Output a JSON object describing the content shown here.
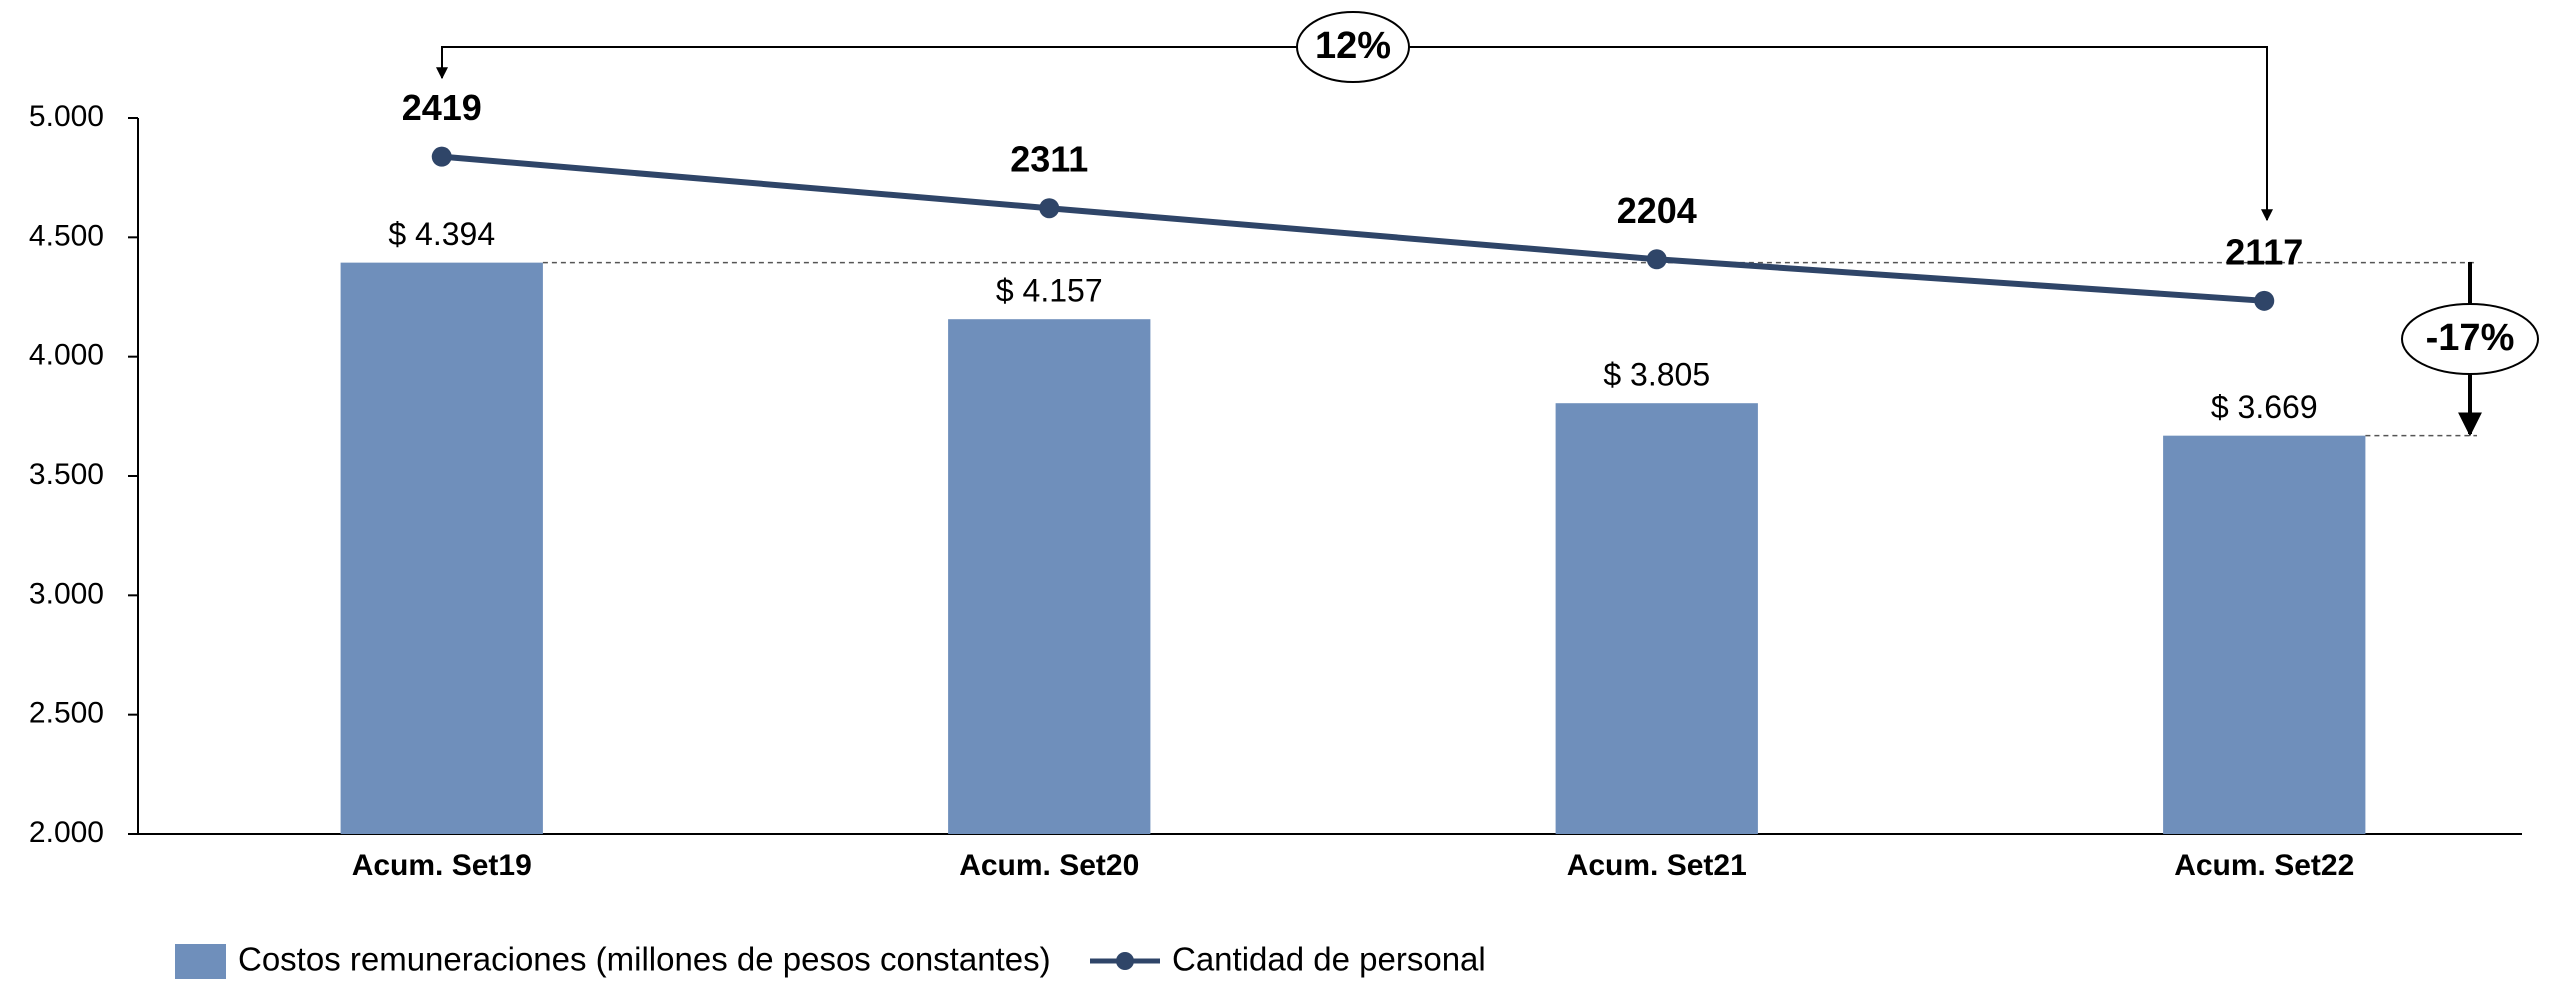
{
  "chart_data": {
    "type": "combo",
    "categories": [
      "Acum. Set19",
      "Acum. Set20",
      "Acum. Set21",
      "Acum. Set22"
    ],
    "series": [
      {
        "name": "Costos remuneraciones (millones de pesos constantes)",
        "type": "bar",
        "color": "#6f8fbb",
        "values": [
          4394,
          4157,
          3805,
          3669
        ],
        "value_labels": [
          "$ 4.394",
          "$ 4.157",
          "$ 3.805",
          "$ 3.669"
        ]
      },
      {
        "name": "Cantidad de personal",
        "type": "line",
        "axis": "y2",
        "color": "#2f4568",
        "values": [
          2419,
          2311,
          2204,
          2117
        ]
      }
    ],
    "ylim": [
      2000,
      5000
    ],
    "yticks": [
      {
        "value": 2000,
        "label": "2.000"
      },
      {
        "value": 2500,
        "label": "2.500"
      },
      {
        "value": 3000,
        "label": "3.000"
      },
      {
        "value": 3500,
        "label": "3.500"
      },
      {
        "value": 4000,
        "label": "4.000"
      },
      {
        "value": 4500,
        "label": "4.500"
      },
      {
        "value": 5000,
        "label": "5.000"
      }
    ],
    "y2lim": [
      1000,
      2500
    ],
    "annotations": [
      "12%",
      "-17%"
    ],
    "grid": false,
    "legend": "bottom-left"
  }
}
